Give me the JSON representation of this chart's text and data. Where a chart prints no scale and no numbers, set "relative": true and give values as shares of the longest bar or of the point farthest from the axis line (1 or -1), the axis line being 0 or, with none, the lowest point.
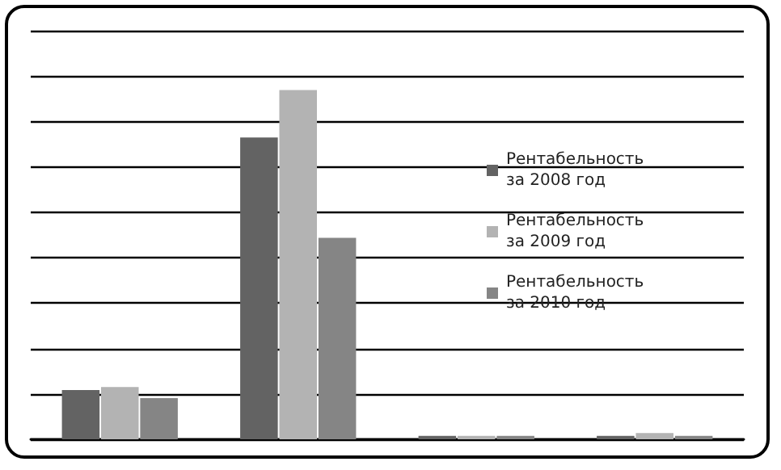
{
  "chart_data": {
    "type": "bar",
    "relative": true,
    "categories": [
      null,
      null,
      null,
      null
    ],
    "series": [
      {
        "name": "Рентабельность за 2008 год",
        "color": "#636363",
        "values": [
          0.141,
          0.864,
          0.01,
          0.01
        ]
      },
      {
        "name": "Рентабельность за 2009 год",
        "color": "#b3b3b3",
        "values": [
          0.15,
          1,
          0.01,
          0.018
        ]
      },
      {
        "name": "Рентабельность за 2010 год",
        "color": "#858585",
        "values": [
          0.118,
          0.577,
          0.01,
          0.01
        ]
      }
    ],
    "grid": true,
    "legend": "right"
  }
}
